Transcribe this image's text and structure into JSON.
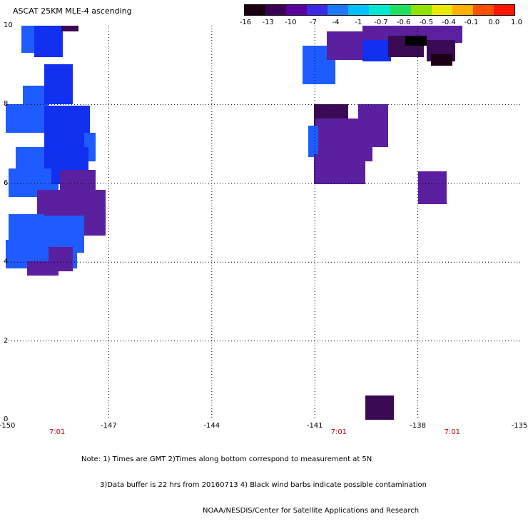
{
  "title": "ASCAT 25KM MLE-4 ascending",
  "colorbar": {
    "labels": [
      "-16",
      "-13",
      "-10",
      "-7",
      "-4",
      "-1",
      "-0.7",
      "-0.6",
      "-0.5",
      "-0.4",
      "-0.1",
      "0.0",
      "1.0"
    ],
    "colors": [
      "#1a0010",
      "#3a0055",
      "#5a00a0",
      "#3c28e6",
      "#1e78ff",
      "#00c0ff",
      "#00e8d0",
      "#20e060",
      "#90e000",
      "#e8e800",
      "#ffb000",
      "#ff5000",
      "#ff1400"
    ]
  },
  "axes": {
    "y_ticks": [
      "0",
      "2",
      "4",
      "6",
      "8",
      "10"
    ],
    "x_ticks": [
      "-150",
      "-147",
      "-144",
      "-141",
      "-138",
      "-135"
    ],
    "time_labels": [
      "7:01",
      "7:01",
      "7:01"
    ],
    "xlim": [
      -150,
      -135
    ],
    "ylim": [
      0,
      10
    ]
  },
  "notes": {
    "line1": "Note: 1) Times are GMT 2)Times along bottom correspond to measurement at 5N",
    "line2": "3)Data buffer is 22 hrs from 20160713 4) Black wind barbs indicate possible contamination",
    "line3": "NOAA/NESDIS/Center for Satellite Applications and Research"
  },
  "colors": {
    "blue": "#1e5cff",
    "bright_blue": "#1230f0",
    "purple": "#5a20a0",
    "dark_purple": "#3a0a55",
    "black": "#000000",
    "time_red": "#c8000a"
  }
}
